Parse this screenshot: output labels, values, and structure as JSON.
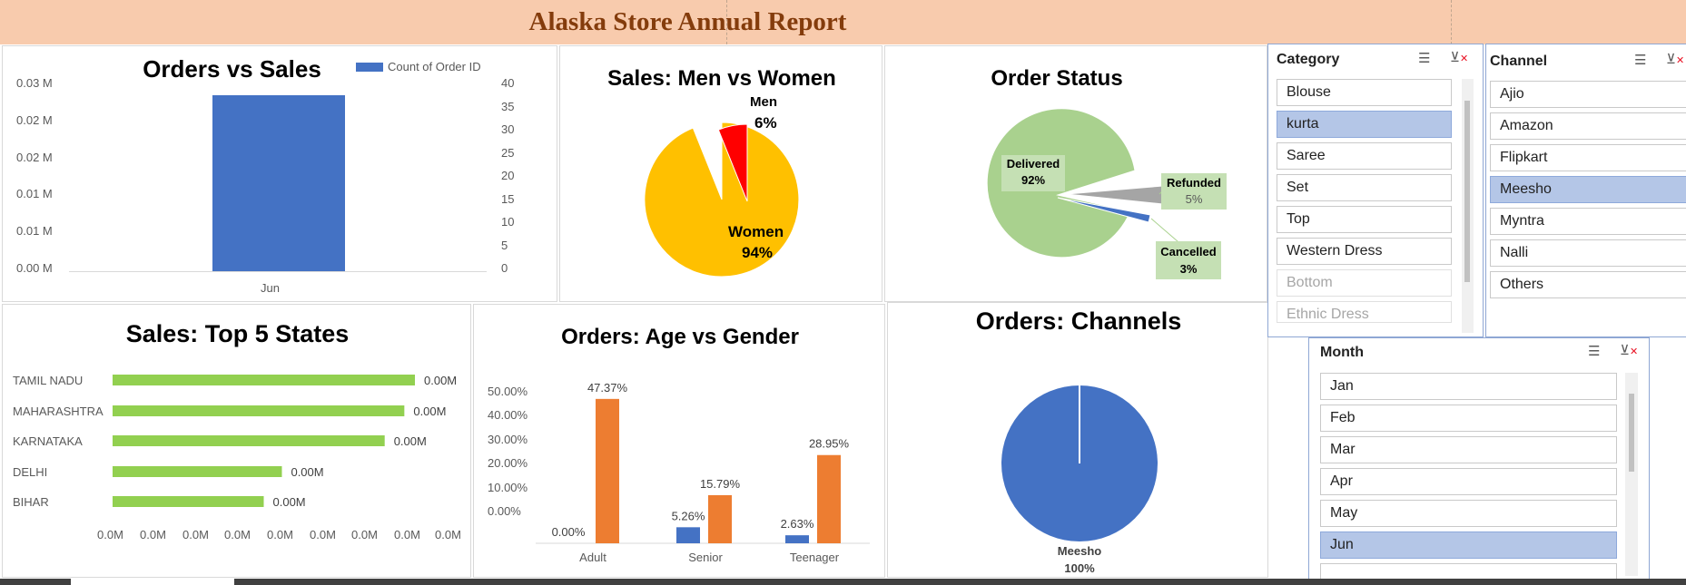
{
  "report_title": "Alaska Store Annual Report",
  "orders_vs_sales": {
    "title": "Orders vs Sales",
    "legend": "Count of Order ID",
    "y_left_ticks": [
      "0.03 M",
      "0.02 M",
      "0.02 M",
      "0.01 M",
      "0.01 M",
      "0.00 M"
    ],
    "y_right_ticks": [
      "40",
      "35",
      "30",
      "25",
      "20",
      "15",
      "10",
      "5",
      "0"
    ],
    "x_label": "Jun"
  },
  "men_vs_women": {
    "title": "Sales: Men vs Women",
    "men_label": "Men",
    "men_pct": "6%",
    "women_label": "Women",
    "women_pct": "94%"
  },
  "order_status": {
    "title": "Order Status",
    "delivered_label": "Delivered",
    "delivered_pct": "92%",
    "refunded_label": "Refunded",
    "refunded_pct": "5%",
    "cancelled_label": "Cancelled",
    "cancelled_pct": "3%"
  },
  "top_states": {
    "title": "Sales: Top 5 States",
    "x_ticks": [
      "0.0M",
      "0.0M",
      "0.0M",
      "0.0M",
      "0.0M",
      "0.0M",
      "0.0M",
      "0.0M",
      "0.0M"
    ]
  },
  "age_gender": {
    "title": "Orders: Age vs Gender",
    "y_ticks": [
      "50.00%",
      "40.00%",
      "30.00%",
      "20.00%",
      "10.00%",
      "0.00%"
    ]
  },
  "channels_chart": {
    "title": "Orders: Channels",
    "label": "Meesho",
    "pct": "100%"
  },
  "category_slicer": {
    "title": "Category",
    "items": [
      {
        "label": "Blouse",
        "state": "normal"
      },
      {
        "label": "kurta",
        "state": "selected"
      },
      {
        "label": "Saree",
        "state": "normal"
      },
      {
        "label": "Set",
        "state": "normal"
      },
      {
        "label": "Top",
        "state": "normal"
      },
      {
        "label": "Western Dress",
        "state": "normal"
      },
      {
        "label": "Bottom",
        "state": "dim"
      },
      {
        "label": "Ethnic Dress",
        "state": "dim"
      }
    ]
  },
  "channel_slicer": {
    "title": "Channel",
    "items": [
      {
        "label": "Ajio",
        "state": "normal"
      },
      {
        "label": "Amazon",
        "state": "normal"
      },
      {
        "label": "Flipkart",
        "state": "normal"
      },
      {
        "label": "Meesho",
        "state": "selected"
      },
      {
        "label": "Myntra",
        "state": "normal"
      },
      {
        "label": "Nalli",
        "state": "normal"
      },
      {
        "label": "Others",
        "state": "normal"
      }
    ]
  },
  "month_slicer": {
    "title": "Month",
    "items": [
      {
        "label": "Jan",
        "state": "normal"
      },
      {
        "label": "Feb",
        "state": "normal"
      },
      {
        "label": "Mar",
        "state": "normal"
      },
      {
        "label": "Apr",
        "state": "normal"
      },
      {
        "label": "May",
        "state": "normal"
      },
      {
        "label": "Jun",
        "state": "selected"
      }
    ]
  },
  "colors": {
    "banner": "#f8cbad",
    "title_text": "#843c0c",
    "bar_blue": "#4472c4",
    "women_yellow": "#ffc000",
    "men_red": "#ff0000",
    "delivered_green": "#a9d18e",
    "refunded_grey": "#a5a5a5",
    "state_bar_green": "#92d050",
    "female_orange": "#ed7d31",
    "slicer_selected": "#b4c6e7"
  },
  "chart_data": [
    {
      "type": "bar",
      "title": "Orders vs Sales",
      "categories": [
        "Jun"
      ],
      "series": [
        {
          "name": "Count of Order ID",
          "values": [
            38
          ]
        }
      ],
      "ylim": [
        0,
        40
      ]
    },
    {
      "type": "pie",
      "title": "Sales: Men vs Women",
      "categories": [
        "Men",
        "Women"
      ],
      "values": [
        6,
        94
      ]
    },
    {
      "type": "pie",
      "title": "Order Status",
      "categories": [
        "Delivered",
        "Refunded",
        "Cancelled"
      ],
      "values": [
        92,
        5,
        3
      ]
    },
    {
      "type": "bar",
      "title": "Sales: Top 5 States",
      "categories": [
        "TAMIL NADU",
        "MAHARASHTRA",
        "KARNATAKA",
        "DELHI",
        "BIHAR"
      ],
      "values": [
        0.0,
        0.0,
        0.0,
        0.0,
        0.0
      ],
      "value_labels": [
        "0.00M",
        "0.00M",
        "0.00M",
        "0.00M",
        "0.00M"
      ],
      "relative_lengths": [
        1.0,
        0.965,
        0.9,
        0.56,
        0.5
      ]
    },
    {
      "type": "bar",
      "title": "Orders: Age vs Gender",
      "categories": [
        "Adult",
        "Senior",
        "Teenager"
      ],
      "series": [
        {
          "values": [
            0.0,
            5.26,
            2.63
          ]
        },
        {
          "values": [
            47.37,
            15.79,
            28.95
          ]
        }
      ],
      "ylim": [
        0,
        50
      ]
    },
    {
      "type": "pie",
      "title": "Orders: Channels",
      "categories": [
        "Meesho"
      ],
      "values": [
        100
      ]
    }
  ]
}
